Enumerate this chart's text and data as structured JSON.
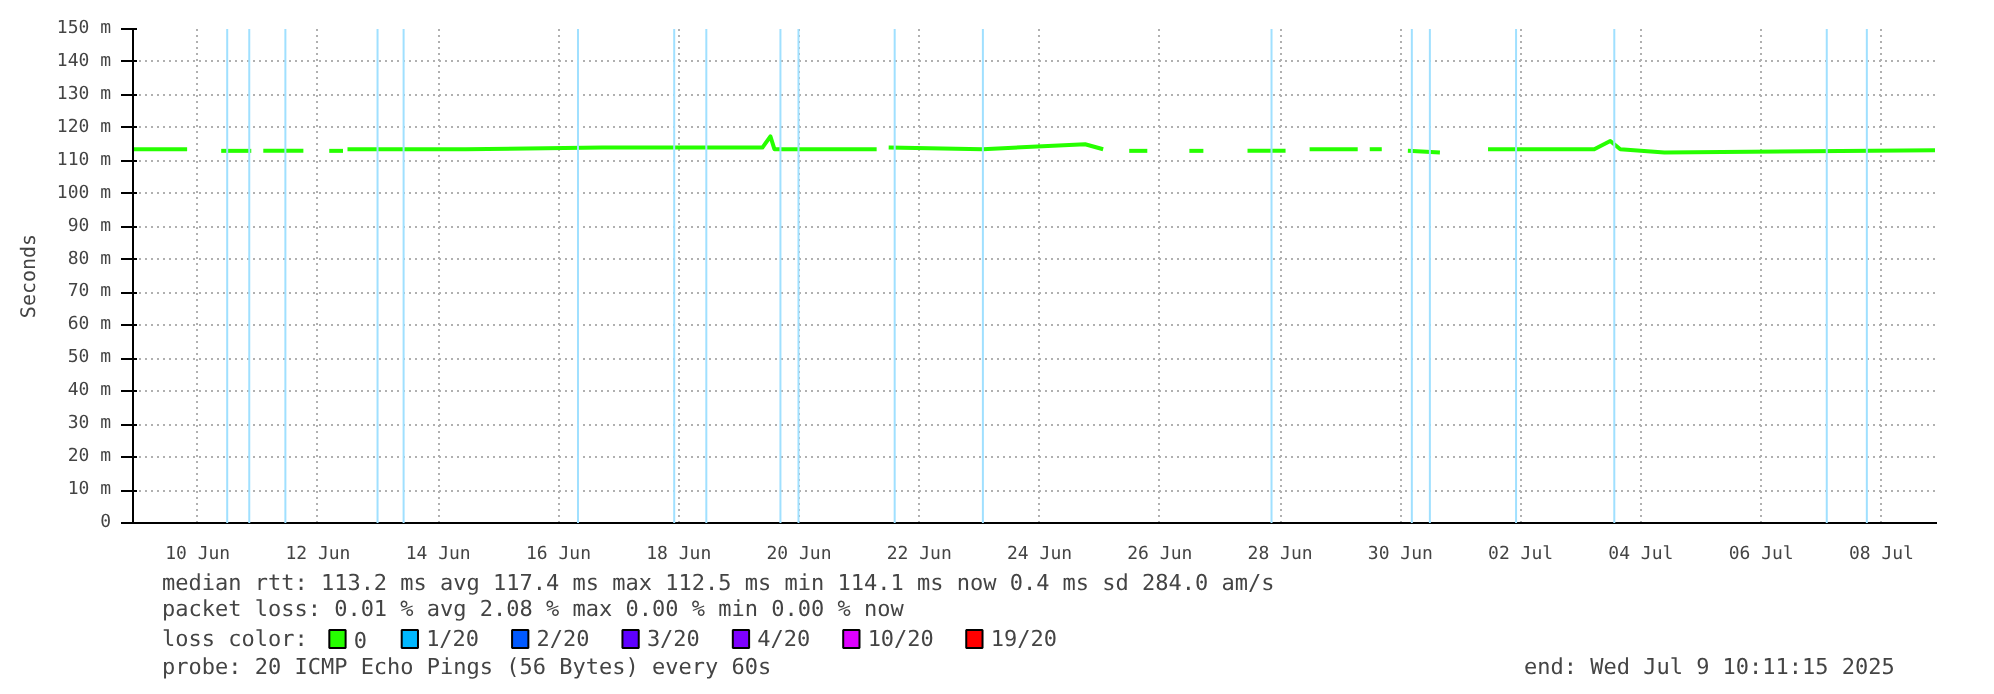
{
  "chart_data": {
    "type": "line",
    "ylabel": "Seconds",
    "xlim": [
      "2025-06-09T10:11",
      "2025-07-09T10:11"
    ],
    "xticks": [
      {
        "value": "2025-06-10T12:00",
        "label": "10 Jun"
      },
      {
        "value": "2025-06-12T12:00",
        "label": "12 Jun"
      },
      {
        "value": "2025-06-14T12:00",
        "label": "14 Jun"
      },
      {
        "value": "2025-06-16T12:00",
        "label": "16 Jun"
      },
      {
        "value": "2025-06-18T12:00",
        "label": "18 Jun"
      },
      {
        "value": "2025-06-20T12:00",
        "label": "20 Jun"
      },
      {
        "value": "2025-06-22T12:00",
        "label": "22 Jun"
      },
      {
        "value": "2025-06-24T12:00",
        "label": "24 Jun"
      },
      {
        "value": "2025-06-26T12:00",
        "label": "26 Jun"
      },
      {
        "value": "2025-06-28T12:00",
        "label": "28 Jun"
      },
      {
        "value": "2025-06-30T12:00",
        "label": "30 Jun"
      },
      {
        "value": "2025-07-02T12:00",
        "label": "02 Jul"
      },
      {
        "value": "2025-07-04T12:00",
        "label": "04 Jul"
      },
      {
        "value": "2025-07-06T12:00",
        "label": "06 Jul"
      },
      {
        "value": "2025-07-08T12:00",
        "label": "08 Jul"
      }
    ],
    "ylim": [
      0,
      150
    ],
    "yticks": [
      0,
      {
        "value": 10,
        "label": "10 m"
      },
      {
        "value": 20,
        "label": "20 m"
      },
      {
        "value": 30,
        "label": "30 m"
      },
      {
        "value": 40,
        "label": "40 m"
      },
      {
        "value": 50,
        "label": "50 m"
      },
      {
        "value": 60,
        "label": "60 m"
      },
      {
        "value": 70,
        "label": "70 m"
      },
      {
        "value": 80,
        "label": "80 m"
      },
      {
        "value": 90,
        "label": "90 m"
      },
      {
        "value": 100,
        "label": "100 m"
      },
      {
        "value": 110,
        "label": "110 m"
      },
      {
        "value": 120,
        "label": "120 m"
      },
      {
        "value": 130,
        "label": "130 m"
      },
      {
        "value": 140,
        "label": "140 m"
      },
      {
        "value": 150,
        "label": "150 m"
      }
    ],
    "grid": true,
    "legend": "bottom",
    "legend_title": "loss color:",
    "series": [
      {
        "name": "0",
        "color": "#26ff00",
        "x": [
          "2025-06-09T10:11",
          "2025-06-10T07:47"
        ],
        "values": [
          113.5,
          113.5
        ]
      },
      {
        "color": "#26ff00",
        "x": [
          "2025-06-10T21:23",
          "2025-06-11T09:23"
        ],
        "values": [
          113,
          113
        ]
      },
      {
        "color": "#26ff00",
        "x": [
          "2025-06-11T14:11",
          "2025-06-12T06:11"
        ],
        "values": [
          113,
          113
        ]
      },
      {
        "color": "#26ff00",
        "x": [
          "2025-06-12T16:30",
          "2025-06-12T22:00"
        ],
        "values": [
          113,
          113
        ]
      },
      {
        "color": "#26ff00",
        "x": [
          "2025-06-12T23:47",
          "2025-06-14T23:00",
          "2025-06-17T05:23",
          "2025-06-19T21:23",
          "2025-06-20T00:35",
          "2025-06-20T02:11",
          "2025-06-21T18:59"
        ],
        "values": [
          113.5,
          113.5,
          114,
          114,
          117.4,
          113.5,
          113.5
        ]
      },
      {
        "color": "#26ff00",
        "x": [
          "2025-06-21T23:47",
          "2025-06-23T13:23",
          "2025-06-25T06:11",
          "2025-06-25T13:23"
        ],
        "values": [
          114,
          113.5,
          115,
          113.5
        ]
      },
      {
        "color": "#26ff00",
        "x": [
          "2025-06-25T23:47",
          "2025-06-26T07:00"
        ],
        "values": [
          113,
          113
        ]
      },
      {
        "color": "#26ff00",
        "x": [
          "2025-06-26T23:47",
          "2025-06-27T05:23"
        ],
        "values": [
          113,
          113
        ]
      },
      {
        "color": "#26ff00",
        "x": [
          "2025-06-27T23:00",
          "2025-06-28T14:11"
        ],
        "values": [
          113,
          113
        ]
      },
      {
        "color": "#26ff00",
        "x": [
          "2025-06-28T23:47",
          "2025-06-29T18:59"
        ],
        "values": [
          113.5,
          113.5
        ]
      },
      {
        "color": "#26ff00",
        "x": [
          "2025-06-29T23:47",
          "2025-06-30T04:35"
        ],
        "values": [
          113.5,
          113.5
        ]
      },
      {
        "color": "#26ff00",
        "x": [
          "2025-06-30T15:00",
          "2025-07-01T03:47"
        ],
        "values": [
          113,
          112.5
        ]
      },
      {
        "color": "#26ff00",
        "x": [
          "2025-07-01T23:00",
          "2025-07-03T17:23",
          "2025-07-03T23:47",
          "2025-07-04T03:47",
          "2025-07-04T21:23",
          "2025-07-09T09:23"
        ],
        "values": [
          113.5,
          113.5,
          116,
          113.5,
          112.5,
          113.2
        ]
      },
      {
        "name": "1/20",
        "color": "#00b8ff"
      },
      {
        "name": "2/20",
        "color": "#0059ff"
      },
      {
        "name": "3/20",
        "color": "#5e00ff"
      },
      {
        "name": "4/20",
        "color": "#7e00ff"
      },
      {
        "name": "10/20",
        "color": "#dd00ff"
      },
      {
        "name": "19/20",
        "color": "#ff0000"
      }
    ],
    "ref_lines": [
      {
        "axis": "x",
        "value": "2025-06-10T23:47",
        "color": "#a0e0ff"
      },
      {
        "axis": "x",
        "value": "2025-06-11T08:35",
        "color": "#a0e0ff"
      },
      {
        "axis": "x",
        "value": "2025-06-11T23:00",
        "color": "#a0e0ff"
      },
      {
        "axis": "x",
        "value": "2025-06-13T11:47",
        "color": "#a0e0ff"
      },
      {
        "axis": "x",
        "value": "2025-06-13T22:11",
        "color": "#a0e0ff"
      },
      {
        "axis": "x",
        "value": "2025-06-16T19:47",
        "color": "#a0e0ff"
      },
      {
        "axis": "x",
        "value": "2025-06-18T10:11",
        "color": "#a0e0ff"
      },
      {
        "axis": "x",
        "value": "2025-06-18T23:00",
        "color": "#a0e0ff"
      },
      {
        "axis": "x",
        "value": "2025-06-20T04:35",
        "color": "#a0e0ff"
      },
      {
        "axis": "x",
        "value": "2025-06-20T11:47",
        "color": "#a0e0ff"
      },
      {
        "axis": "x",
        "value": "2025-06-22T02:11",
        "color": "#a0e0ff"
      },
      {
        "axis": "x",
        "value": "2025-06-23T13:23",
        "color": "#a0e0ff"
      },
      {
        "axis": "x",
        "value": "2025-06-28T08:35",
        "color": "#a0e0ff"
      },
      {
        "axis": "x",
        "value": "2025-06-30T16:35",
        "color": "#a0e0ff"
      },
      {
        "axis": "x",
        "value": "2025-06-30T23:47",
        "color": "#a0e0ff"
      },
      {
        "axis": "x",
        "value": "2025-07-02T10:11",
        "color": "#a0e0ff"
      },
      {
        "axis": "x",
        "value": "2025-07-04T01:23",
        "color": "#a0e0ff"
      },
      {
        "axis": "x",
        "value": "2025-07-07T14:11",
        "color": "#a0e0ff"
      },
      {
        "axis": "x",
        "value": "2025-07-08T06:11",
        "color": "#a0e0ff"
      }
    ],
    "annotations": [
      "median rtt:  113.2 ms avg  117.4 ms max  112.5 ms min  114.1 ms now  0.4 ms sd  284.0   am/s",
      "packet loss: 0.01 % avg  2.08 % max  0.00 % min  0.00 % now",
      "probe:       20 ICMP Echo Pings (56 Bytes) every 60s",
      "end: Wed Jul  9 10:11:15 2025"
    ]
  }
}
